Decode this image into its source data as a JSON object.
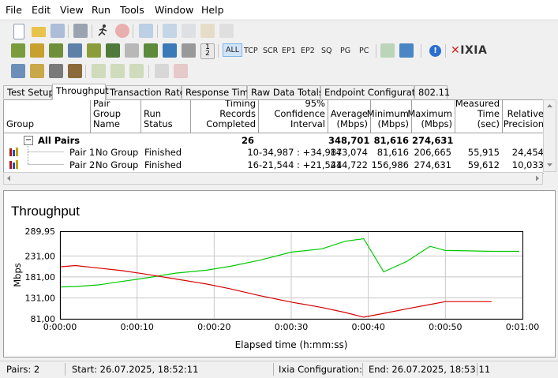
{
  "menu": [
    "File",
    "Edit",
    "View",
    "Run",
    "Tools",
    "Window",
    "Help"
  ],
  "toolbar2": {
    "buttons": [
      "ALL",
      "TCP",
      "SCR",
      "EP1",
      "EP2",
      "SQ",
      "PG",
      "PC"
    ],
    "logo": "IXIA"
  },
  "tabs": [
    "Test Setup",
    "Throughput",
    "Transaction Rate",
    "Response Time",
    "Raw Data Totals",
    "Endpoint Configuration",
    "802.11"
  ],
  "active_tab": "Throughput",
  "table": {
    "headers": [
      "Group",
      "Pair Group Name",
      "Run Status",
      "Timing Records Completed",
      "95% Confidence Interval",
      "Average (Mbps)",
      "Minimum (Mbps)",
      "Maximum (Mbps)",
      "Measured Time (sec)",
      "Relative Precision"
    ],
    "summary": {
      "expander": "−",
      "group": "All Pairs",
      "records": "26",
      "average": "348,701",
      "minimum": "81,616",
      "maximum": "274,631"
    },
    "rows": [
      {
        "pair": "Pair 1",
        "group_name": "No Group",
        "status": "Finished",
        "records": "10",
        "ci": "-34,987 : +34,987",
        "average": "143,074",
        "minimum": "81,616",
        "maximum": "206,665",
        "time": "55,915",
        "precision": "24,454"
      },
      {
        "pair": "Pair 2",
        "group_name": "No Group",
        "status": "Finished",
        "records": "16",
        "ci": "-21,544 : +21,544",
        "average": "214,722",
        "minimum": "156,986",
        "maximum": "274,631",
        "time": "59,612",
        "precision": "10,033"
      }
    ]
  },
  "chart_data": {
    "type": "line",
    "title": "Throughput",
    "xlabel": "Elapsed time (h:mm:ss)",
    "ylabel": "Mbps",
    "xlim": [
      0,
      60
    ],
    "ylim": [
      81,
      289.95
    ],
    "x_tick_values": [
      0,
      10,
      20,
      30,
      40,
      50,
      60
    ],
    "x_tick_labels": [
      "0:00:00",
      "0:00:10",
      "0:00:20",
      "0:00:30",
      "0:00:40",
      "0:00:50",
      "0:01:00"
    ],
    "y_tick_values": [
      81,
      131,
      181,
      231,
      289.95
    ],
    "y_tick_labels": [
      "81,00",
      "131,00",
      "181,00",
      "231,00",
      "289,95"
    ],
    "grid": true,
    "series": [
      {
        "color": "#00c800",
        "x": [
          0,
          2,
          5,
          8,
          11,
          15,
          19,
          22,
          26,
          30,
          34,
          37,
          39.4,
          42,
          45,
          48,
          50,
          53,
          56,
          58,
          59.6
        ],
        "y": [
          157,
          158,
          162,
          170,
          178,
          190,
          197,
          206,
          221,
          240,
          248,
          266,
          272,
          193,
          218,
          254,
          244,
          243,
          242,
          242,
          242
        ]
      },
      {
        "color": "#d40000",
        "x": [
          0,
          2,
          5,
          8,
          11,
          15,
          19,
          22,
          26,
          30,
          34,
          37,
          39.4,
          42,
          45,
          48,
          50,
          53,
          56
        ],
        "y": [
          205,
          208,
          202,
          196,
          188,
          176,
          164,
          153,
          136,
          121,
          108,
          96,
          85,
          94,
          105,
          115,
          122,
          122,
          122
        ]
      }
    ]
  },
  "status": {
    "pairs": "Pairs: 2",
    "start": "Start: 26.07.2025, 18:52:11",
    "ixia": "Ixia Configuration:",
    "end": "End: 26.07.2025, 18:53:11"
  }
}
